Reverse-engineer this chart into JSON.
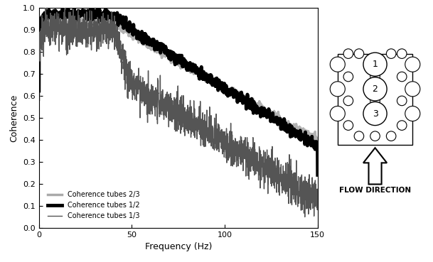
{
  "xlabel": "Frequency (Hz)",
  "ylabel": "Coherence",
  "xlim": [
    0,
    150
  ],
  "ylim": [
    0,
    1
  ],
  "xticks": [
    0,
    50,
    100,
    150
  ],
  "yticks": [
    0,
    0.1,
    0.2,
    0.3,
    0.4,
    0.5,
    0.6,
    0.7,
    0.8,
    0.9,
    1
  ],
  "legend_labels": [
    "Coherence tubes 2/3",
    "Coherence tubes 1/2",
    "Coherence tubes 1/3"
  ],
  "color_23": "#aaaaaa",
  "color_12": "#000000",
  "color_13": "#555555",
  "lw_23": 2.5,
  "lw_12": 3.5,
  "lw_13": 1.0,
  "background_color": "#ffffff",
  "flow_direction_text": "FLOW DIRECTION",
  "seed": 42
}
